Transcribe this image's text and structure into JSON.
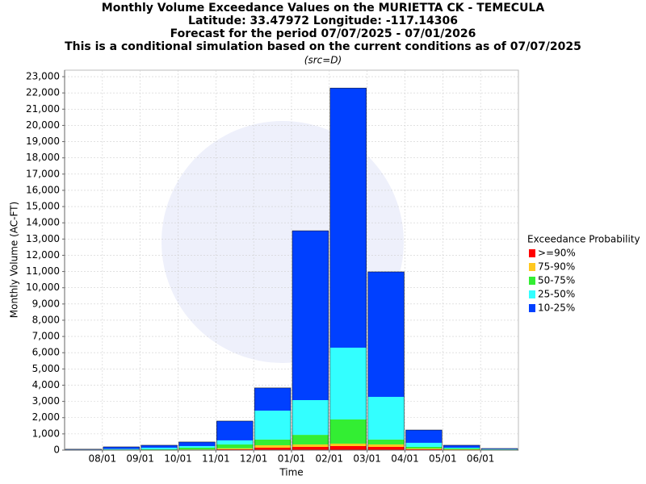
{
  "chart_data": {
    "type": "stacked_bar",
    "title": [
      "Monthly Volume Exceedance Values on the MURIETTA CK - TEMECULA",
      "Latitude: 33.47972 Longitude: -117.14306",
      "Forecast for the period 07/07/2025 - 07/01/2026",
      "This is a conditional simulation based on the current conditions as of 07/07/2025"
    ],
    "subtitle": "(src=D)",
    "x_label": "Time",
    "y_label": "Monthly Volume (AC-FT)",
    "legend_title": "Exceedance Probability",
    "legend_position": "right",
    "xticks": [
      "08/01",
      "09/01",
      "10/01",
      "11/01",
      "12/01",
      "01/01",
      "02/01",
      "03/01",
      "04/01",
      "05/01",
      "06/01"
    ],
    "series": [
      {
        "name": ">=90%",
        "color": "#ff0000",
        "values": [
          5,
          10,
          10,
          20,
          50,
          150,
          200,
          250,
          200,
          50,
          20,
          10
        ]
      },
      {
        "name": "75-90%",
        "color": "#ffc820",
        "values": [
          5,
          10,
          10,
          20,
          60,
          150,
          150,
          150,
          150,
          50,
          30,
          10
        ]
      },
      {
        "name": "50-75%",
        "color": "#33ee33",
        "values": [
          10,
          20,
          30,
          110,
          240,
          350,
          590,
          1490,
          300,
          100,
          50,
          20
        ]
      },
      {
        "name": "25-50%",
        "color": "#33ffff",
        "values": [
          15,
          30,
          100,
          100,
          250,
          1780,
          2140,
          4420,
          2630,
          250,
          50,
          20
        ]
      },
      {
        "name": "10-25%",
        "color": "#0040ff",
        "values": [
          20,
          130,
          150,
          250,
          1190,
          1400,
          10430,
          15990,
          7700,
          790,
          150,
          40
        ]
      }
    ],
    "ylim": [
      0,
      23400
    ],
    "yticks": [
      0,
      {
        "value": 1000,
        "label": "1,000"
      },
      {
        "value": 2000,
        "label": "2,000"
      },
      {
        "value": 3000,
        "label": "3,000"
      },
      {
        "value": 4000,
        "label": "4,000"
      },
      {
        "value": 5000,
        "label": "5,000"
      },
      {
        "value": 6000,
        "label": "6,000"
      },
      {
        "value": 7000,
        "label": "7,000"
      },
      {
        "value": 8000,
        "label": "8,000"
      },
      {
        "value": 9000,
        "label": "9,000"
      },
      {
        "value": 10000,
        "label": "10,000"
      },
      {
        "value": 11000,
        "label": "11,000"
      },
      {
        "value": 12000,
        "label": "12,000"
      },
      {
        "value": 13000,
        "label": "13,000"
      },
      {
        "value": 14000,
        "label": "14,000"
      },
      {
        "value": 15000,
        "label": "15,000"
      },
      {
        "value": 16000,
        "label": "16,000"
      },
      {
        "value": 17000,
        "label": "17,000"
      },
      {
        "value": 18000,
        "label": "18,000"
      },
      {
        "value": 19000,
        "label": "19,000"
      },
      {
        "value": 20000,
        "label": "20,000"
      },
      {
        "value": 21000,
        "label": "21,000"
      },
      {
        "value": 22000,
        "label": "22,000"
      },
      {
        "value": 23000,
        "label": "23,000"
      }
    ],
    "grid": true
  }
}
